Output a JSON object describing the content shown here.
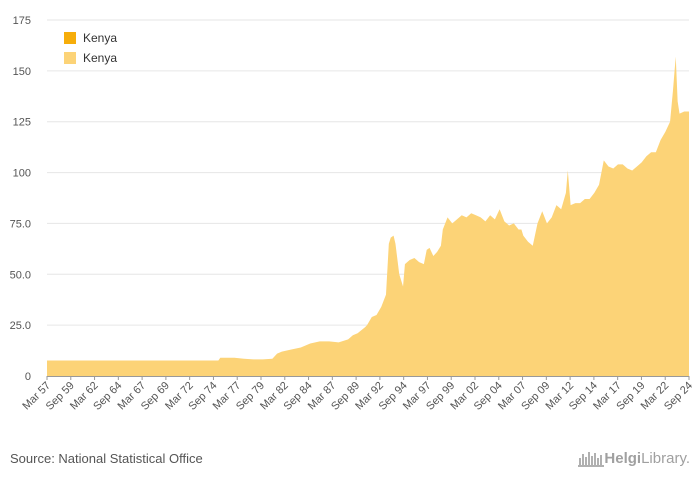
{
  "chart_data": {
    "type": "area",
    "title": "",
    "xlabel": "",
    "ylabel": "",
    "ylim": [
      0,
      175
    ],
    "yticks": [
      "0",
      "25.0",
      "50.0",
      "75.0",
      "100",
      "125",
      "150",
      "175"
    ],
    "ytick_values": [
      0,
      25,
      50,
      75,
      100,
      125,
      150,
      175
    ],
    "x_start": 1957.2,
    "x_end": 2025.0,
    "xtick_labels": [
      "Mar 57",
      "Sep 59",
      "Mar 62",
      "Sep 64",
      "Mar 67",
      "Sep 69",
      "Mar 72",
      "Sep 74",
      "Mar 77",
      "Sep 79",
      "Mar 82",
      "Sep 84",
      "Mar 87",
      "Sep 89",
      "Mar 92",
      "Sep 94",
      "Mar 97",
      "Sep 99",
      "Mar 02",
      "Sep 04",
      "Mar 07",
      "Sep 09",
      "Mar 12",
      "Sep 14",
      "Mar 17",
      "Sep 19",
      "Mar 22",
      "Sep 24"
    ],
    "legend": [
      "Kenya",
      "Kenya"
    ],
    "legend_colors": [
      "#f6ad0a",
      "#fcd377"
    ],
    "series": [
      {
        "name": "Kenya",
        "color": "#fcd377",
        "x": [
          1957.2,
          1960,
          1965,
          1970,
          1974.5,
          1975.3,
          1975.5,
          1976,
          1977,
          1978,
          1979,
          1980,
          1981,
          1981.5,
          1982,
          1983,
          1984,
          1984.5,
          1985,
          1986,
          1987,
          1988,
          1989,
          1989.5,
          1990,
          1990.8,
          1991,
          1991.5,
          1992,
          1992.5,
          1993,
          1993.3,
          1993.5,
          1993.8,
          1994,
          1994.4,
          1994.8,
          1995,
          1995.5,
          1996,
          1996.5,
          1997,
          1997.3,
          1997.6,
          1998,
          1998.4,
          1998.8,
          1999,
          1999.5,
          2000,
          2001,
          2001.5,
          2002,
          2002.5,
          2003,
          2003.5,
          2004,
          2004.5,
          2005,
          2005.5,
          2006,
          2006.5,
          2007,
          2007.3,
          2007.5,
          2008,
          2008.5,
          2009,
          2009.5,
          2010,
          2010.5,
          2011,
          2011.5,
          2012,
          2012.2,
          2012.5,
          2013,
          2013.5,
          2014,
          2014.5,
          2015,
          2015.5,
          2016,
          2016.5,
          2017,
          2017.5,
          2018,
          2018.5,
          2019,
          2019.5,
          2020,
          2020.5,
          2021,
          2021.5,
          2022,
          2022.5,
          2023,
          2023.3,
          2023.6,
          2023.8,
          2024,
          2024.5,
          2025
        ],
        "y": [
          7.6,
          7.6,
          7.6,
          7.6,
          7.6,
          7.6,
          9,
          9,
          9,
          8.5,
          8.2,
          8.2,
          8.5,
          11,
          12,
          13,
          14,
          15,
          16,
          17,
          17,
          16.5,
          18,
          20,
          21,
          24,
          25,
          29,
          30,
          34,
          40,
          65,
          68,
          69,
          65,
          50,
          44,
          55,
          57,
          58,
          56,
          55,
          62,
          63,
          59,
          61,
          64,
          72,
          78,
          75,
          79,
          78,
          80,
          79,
          78,
          76,
          79,
          77,
          82,
          76,
          74,
          75,
          72,
          72,
          69,
          66,
          64,
          75,
          81,
          75,
          78,
          84,
          82,
          90,
          101,
          84,
          85,
          85,
          87,
          87,
          90,
          94,
          106,
          103,
          102,
          104,
          104,
          102,
          101,
          103,
          105,
          108,
          110,
          110,
          116,
          120,
          125,
          140,
          157,
          135,
          129,
          130,
          130
        ]
      }
    ]
  },
  "footer": {
    "source": "Source: National Statistical Office",
    "brand_main": "Helgi",
    "brand_lib": "Library."
  }
}
